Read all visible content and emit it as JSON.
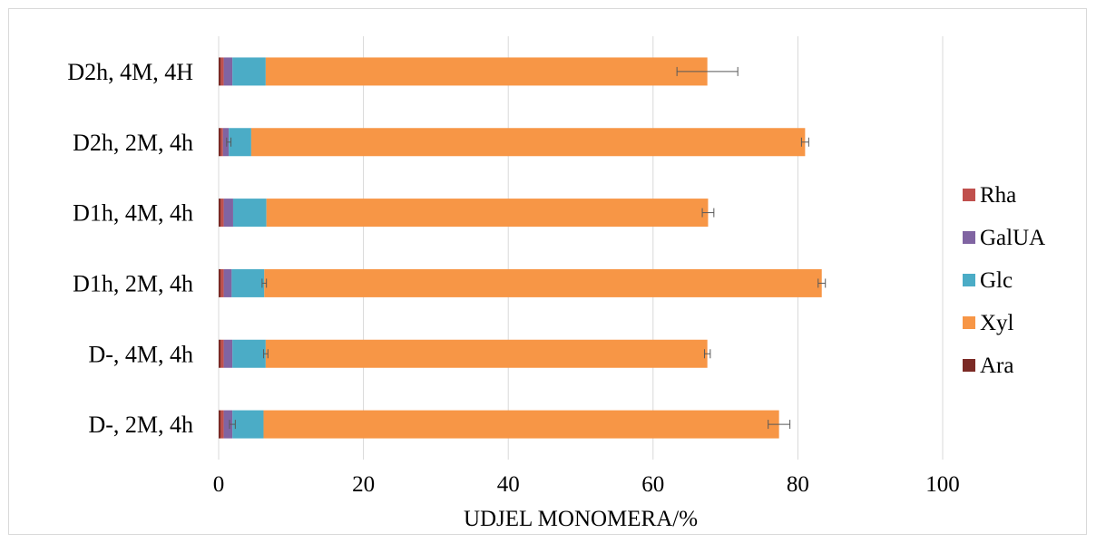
{
  "chart_data": {
    "type": "bar",
    "orientation": "horizontal",
    "stacked": true,
    "categories": [
      "D2h, 4M, 4H",
      "D2h, 2M, 4h",
      "D1h, 4M, 4h",
      "D1h, 2M, 4h",
      "D-, 4M, 4h",
      "D-, 2M, 4h"
    ],
    "series": [
      {
        "name": "Ara",
        "color": "#7b2a25",
        "values": [
          0.3,
          0.3,
          0.3,
          0.3,
          0.3,
          0.3
        ],
        "errors": [
          0,
          0,
          0,
          0,
          0,
          0
        ]
      },
      {
        "name": "Rha",
        "color": "#c0504d",
        "values": [
          0.4,
          0.3,
          0.4,
          0.4,
          0.4,
          0.4
        ],
        "errors": [
          0,
          0,
          0,
          0,
          0,
          0
        ]
      },
      {
        "name": "GalUA",
        "color": "#8064a2",
        "values": [
          1.2,
          0.8,
          1.3,
          1.1,
          1.2,
          1.2
        ],
        "errors": [
          0,
          0.3,
          0,
          0,
          0,
          0.4
        ]
      },
      {
        "name": "Glc",
        "color": "#4bacc6",
        "values": [
          4.6,
          3.1,
          4.6,
          4.5,
          4.6,
          4.3
        ],
        "errors": [
          0,
          0,
          0,
          0.3,
          0.3,
          0
        ]
      },
      {
        "name": "Xyl",
        "color": "#f79646",
        "values": [
          61.0,
          76.5,
          61.0,
          77.0,
          61.0,
          71.2
        ],
        "errors": [
          4.2,
          0.5,
          0.8,
          0.5,
          0.4,
          1.5
        ]
      }
    ],
    "xlim": [
      0,
      100
    ],
    "xticks": [
      0,
      20,
      40,
      60,
      80,
      100
    ],
    "xlabel": "UDJEL MONOMERA/%",
    "ylabel": "",
    "grid": "vertical",
    "legend_order": [
      "Rha",
      "GalUA",
      "Glc",
      "Xyl",
      "Ara"
    ],
    "legend_position": "right"
  }
}
